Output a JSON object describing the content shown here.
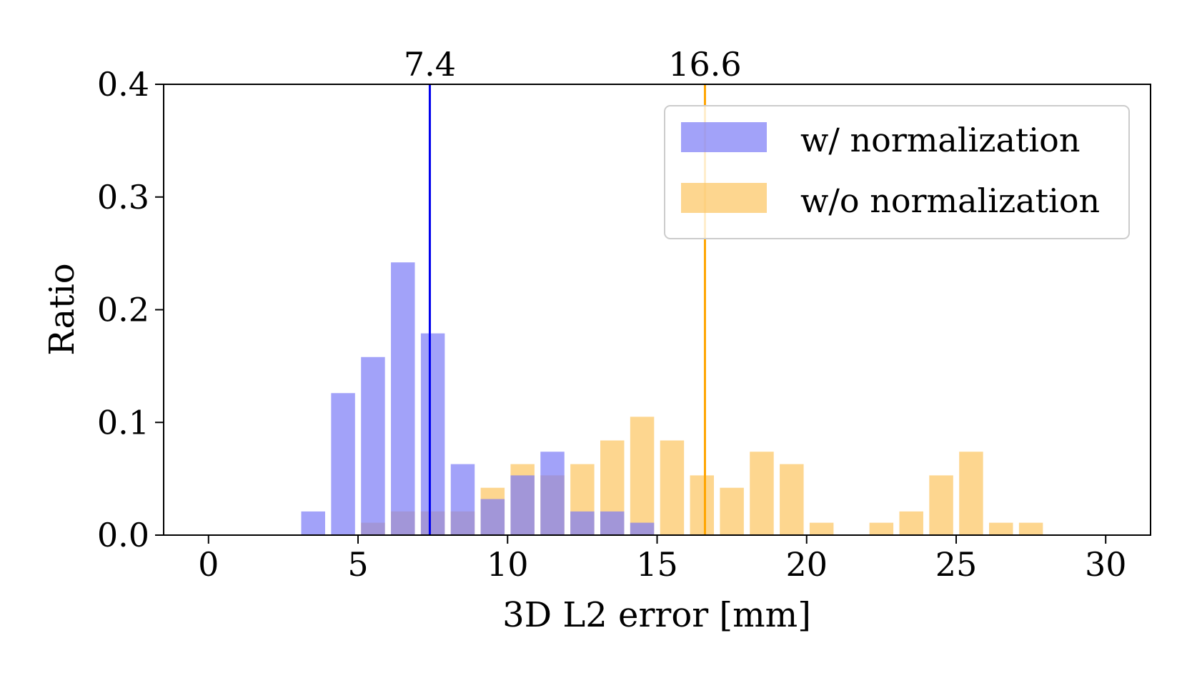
{
  "chart_data": {
    "type": "bar",
    "title": "",
    "xlabel": "3D L2 error [mm]",
    "ylabel": "Ratio",
    "xlim": [
      -1.5,
      31.5
    ],
    "ylim": [
      0,
      0.4
    ],
    "x_ticks": [
      0,
      5,
      10,
      15,
      20,
      25,
      30
    ],
    "x_tick_labels": [
      "0",
      "5",
      "10",
      "15",
      "20",
      "25",
      "30"
    ],
    "y_ticks": [
      0,
      0.1,
      0.2,
      0.3,
      0.4
    ],
    "y_tick_labels": [
      "0.0",
      "0.1",
      "0.2",
      "0.3",
      "0.4"
    ],
    "grid": false,
    "bin_width": 1,
    "bar_width": 0.8,
    "bin_centers": [
      3.5,
      4.5,
      5.5,
      6.5,
      7.5,
      8.5,
      9.5,
      10.5,
      11.5,
      12.5,
      13.5,
      14.5,
      15.5,
      16.5,
      17.5,
      18.5,
      19.5,
      20.5,
      21.5,
      22.5,
      23.5,
      24.5,
      25.5,
      26.5,
      27.5
    ],
    "series": [
      {
        "name": "w/ normalization",
        "color": "#7b7bf7",
        "values": [
          0.021,
          0.126,
          0.158,
          0.242,
          0.179,
          0.063,
          0.032,
          0.053,
          0.074,
          0.021,
          0.021,
          0.011,
          0,
          0,
          0,
          0,
          0,
          0,
          0,
          0,
          0,
          0,
          0,
          0,
          0
        ]
      },
      {
        "name": "w/o normalization",
        "color": "#fcc45f",
        "values": [
          0,
          0,
          0.011,
          0.021,
          0.021,
          0.021,
          0.042,
          0.063,
          0.053,
          0.063,
          0.084,
          0.105,
          0.084,
          0.053,
          0.042,
          0.074,
          0.063,
          0.011,
          0,
          0.011,
          0.021,
          0.053,
          0.074,
          0.011,
          0.011
        ]
      }
    ],
    "vlines": [
      {
        "x": 7.4,
        "label": "7.4",
        "color": "#0000ee"
      },
      {
        "x": 16.6,
        "label": "16.6",
        "color": "#ffa500"
      }
    ],
    "legend_position": "top-right"
  }
}
